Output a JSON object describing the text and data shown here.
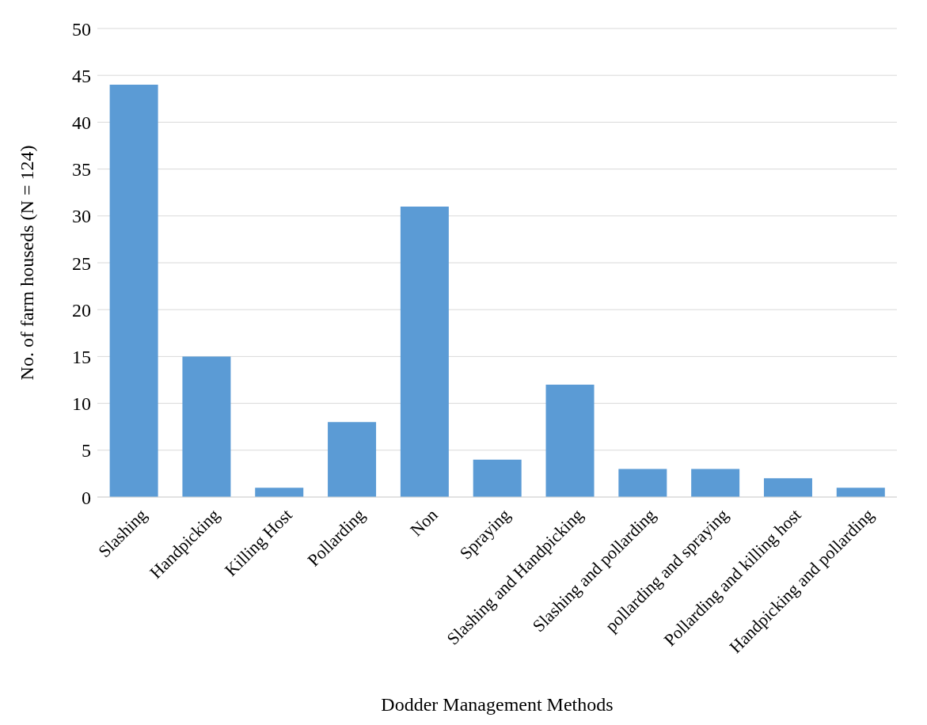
{
  "chart_data": {
    "type": "bar",
    "xlabel": "Dodder Management Methods",
    "ylabel": "No. of farm houseds (N = 124)",
    "categories": [
      "Slashing",
      "Handpicking",
      "Killing Host",
      "Pollarding",
      "Non",
      "Spraying",
      "Slashing and Handpicking",
      "Slashing and pollarding",
      "pollarding and spraying",
      "Pollarding and killing host",
      "Handpicking and pollarding"
    ],
    "values": [
      44,
      15,
      1,
      8,
      31,
      4,
      12,
      3,
      3,
      2,
      1
    ],
    "color": "#5b9bd5",
    "ylim": [
      0,
      50
    ],
    "yticks": [
      0,
      5,
      10,
      15,
      20,
      25,
      30,
      35,
      40,
      45,
      50
    ],
    "grid": "y"
  }
}
